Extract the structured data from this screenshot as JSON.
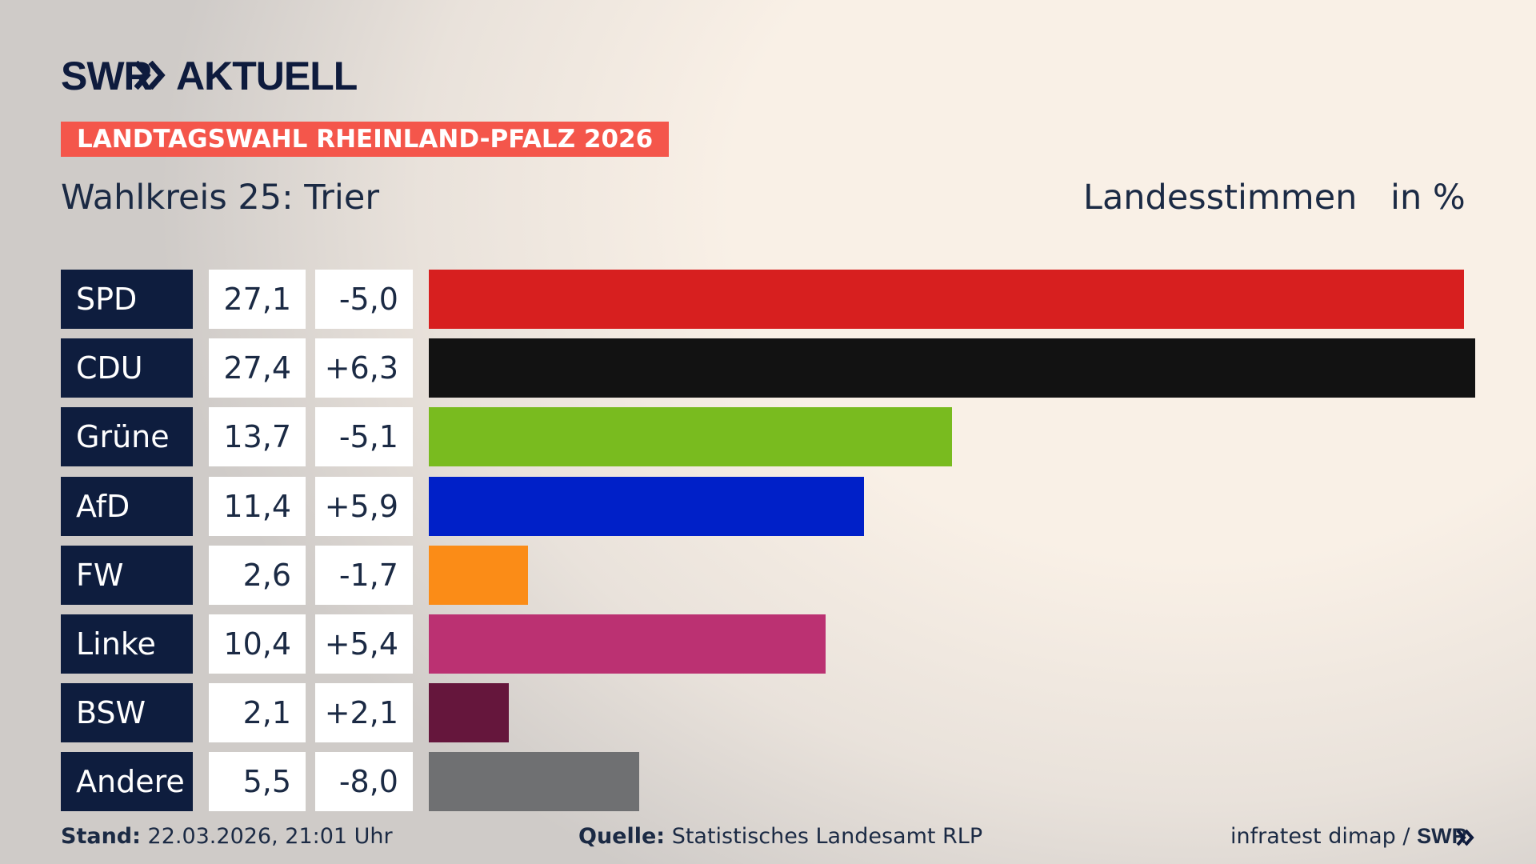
{
  "brand": {
    "name": "SWR",
    "section": "AKTUELL"
  },
  "chart_data": {
    "type": "bar",
    "orientation": "horizontal",
    "kicker": "LANDTAGSWAHL RHEINLAND-PFALZ 2026",
    "title": "Wahlkreis 25: Trier",
    "measure": "Landesstimmen",
    "unit": "in %",
    "categories": [
      "SPD",
      "CDU",
      "Grüne",
      "AfD",
      "FW",
      "Linke",
      "BSW",
      "Andere"
    ],
    "values": [
      27.1,
      27.4,
      13.7,
      11.4,
      2.6,
      10.4,
      2.1,
      5.5
    ],
    "value_labels": [
      "27,1",
      "27,4",
      "13,7",
      "11,4",
      "2,6",
      "10,4",
      "2,1",
      "5,5"
    ],
    "changes": [
      -5.0,
      6.3,
      -5.1,
      5.9,
      -1.7,
      5.4,
      2.1,
      -8.0
    ],
    "change_labels": [
      "-5,0",
      "+6,3",
      "-5,1",
      "+5,9",
      "-1,7",
      "+5,4",
      "+2,1",
      "-8,0"
    ],
    "colors": [
      "#d71f1f",
      "#121212",
      "#79bb1f",
      "#0020c8",
      "#fb8c17",
      "#bb3172",
      "#65163c",
      "#6f7072"
    ]
  },
  "footer": {
    "stand_label": "Stand:",
    "stand": "22.03.2026, 21:01 Uhr",
    "source_label": "Quelle:",
    "source": "Statistisches Landesamt RLP",
    "credit": "infratest dimap /",
    "credit_brand": "SWR"
  }
}
